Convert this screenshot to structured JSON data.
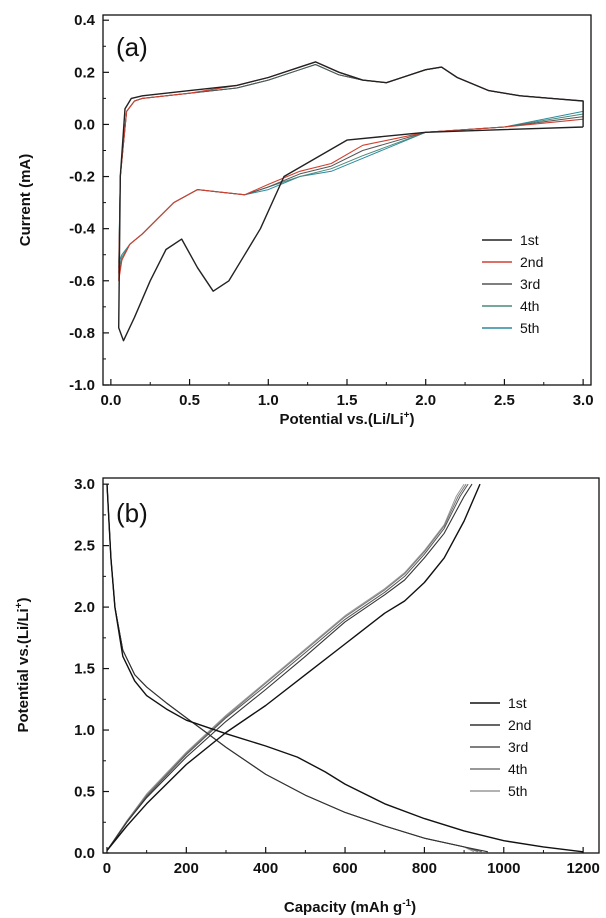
{
  "chart_data": [
    {
      "type": "line",
      "panel": "(a)",
      "xlabel": "Potential vs.(Li/Li",
      "xlabel_sup": "+",
      "xlabel_tail": ")",
      "ylabel": "Current (mA)",
      "xlim": [
        -0.05,
        3.05
      ],
      "ylim": [
        -1.0,
        0.42
      ],
      "xticks": [
        0.0,
        0.5,
        1.0,
        1.5,
        2.0,
        2.5,
        3.0
      ],
      "xtick_labels": [
        "0.0",
        "0.5",
        "1.0",
        "1.5",
        "2.0",
        "2.5",
        "3.0"
      ],
      "yticks": [
        -1.0,
        -0.8,
        -0.6,
        -0.4,
        -0.2,
        0.0,
        0.2,
        0.4
      ],
      "ytick_labels": [
        "-1.0",
        "-0.8",
        "-0.6",
        "-0.4",
        "-0.2",
        "0.0",
        "0.2",
        "0.4"
      ],
      "legend_position": "right",
      "series": [
        {
          "name": "1st",
          "color": "#222222",
          "width": 1.4,
          "x": [
            3.0,
            2.5,
            2.0,
            1.5,
            1.1,
            0.95,
            0.85,
            0.75,
            0.65,
            0.55,
            0.45,
            0.35,
            0.25,
            0.15,
            0.08,
            0.05,
            0.06,
            0.09,
            0.13,
            0.2,
            0.5,
            0.8,
            1.0,
            1.2,
            1.3,
            1.45,
            1.6,
            1.75,
            1.85,
            2.0,
            2.1,
            2.2,
            2.4,
            2.6,
            2.8,
            3.0,
            3.0
          ],
          "y": [
            -0.01,
            -0.02,
            -0.03,
            -0.06,
            -0.2,
            -0.4,
            -0.5,
            -0.6,
            -0.64,
            -0.55,
            -0.44,
            -0.48,
            -0.6,
            -0.74,
            -0.83,
            -0.78,
            -0.2,
            0.06,
            0.1,
            0.11,
            0.13,
            0.15,
            0.18,
            0.22,
            0.24,
            0.2,
            0.17,
            0.16,
            0.18,
            0.21,
            0.22,
            0.18,
            0.13,
            0.11,
            0.1,
            0.09,
            -0.01
          ]
        },
        {
          "name": "2nd",
          "color": "#d04030",
          "width": 1.1,
          "x": [
            3.0,
            2.5,
            2.0,
            1.6,
            1.4,
            1.2,
            1.0,
            0.85,
            0.7,
            0.55,
            0.4,
            0.3,
            0.2,
            0.12,
            0.07,
            0.05,
            0.06,
            0.1,
            0.15,
            0.2,
            0.5,
            0.8,
            1.0,
            1.2,
            1.3,
            1.45,
            1.6,
            1.75,
            1.85,
            2.0,
            2.1,
            2.2,
            2.4,
            2.6,
            2.8,
            3.0,
            3.0
          ],
          "y": [
            0.02,
            -0.01,
            -0.03,
            -0.08,
            -0.15,
            -0.18,
            -0.23,
            -0.27,
            -0.26,
            -0.25,
            -0.3,
            -0.36,
            -0.42,
            -0.46,
            -0.52,
            -0.6,
            -0.2,
            0.05,
            0.09,
            0.1,
            0.12,
            0.15,
            0.18,
            0.22,
            0.24,
            0.2,
            0.17,
            0.16,
            0.18,
            0.21,
            0.22,
            0.18,
            0.13,
            0.11,
            0.1,
            0.09,
            0.02
          ]
        },
        {
          "name": "3rd",
          "color": "#555555",
          "width": 1.0,
          "x": [
            3.0,
            2.5,
            2.0,
            1.6,
            1.4,
            1.2,
            1.0,
            0.85,
            0.7,
            0.55,
            0.4,
            0.3,
            0.2,
            0.12,
            0.07,
            0.05,
            0.06,
            0.1,
            0.15,
            0.2,
            0.5,
            0.8,
            1.0,
            1.2,
            1.3,
            1.45,
            1.6,
            1.75,
            1.85,
            2.0,
            2.1,
            2.2,
            2.4,
            2.6,
            2.8,
            3.0,
            3.0
          ],
          "y": [
            0.03,
            -0.01,
            -0.03,
            -0.1,
            -0.16,
            -0.19,
            -0.24,
            -0.27,
            -0.26,
            -0.25,
            -0.3,
            -0.36,
            -0.42,
            -0.46,
            -0.52,
            -0.57,
            -0.2,
            0.05,
            0.09,
            0.1,
            0.12,
            0.14,
            0.17,
            0.21,
            0.23,
            0.19,
            0.17,
            0.16,
            0.18,
            0.21,
            0.22,
            0.18,
            0.13,
            0.11,
            0.1,
            0.09,
            0.03
          ]
        },
        {
          "name": "4th",
          "color": "#4a8a78",
          "width": 1.0,
          "x": [
            3.0,
            2.5,
            2.0,
            1.6,
            1.4,
            1.2,
            1.0,
            0.85,
            0.7,
            0.55,
            0.4,
            0.3,
            0.2,
            0.12,
            0.07,
            0.05,
            0.06,
            0.1,
            0.15,
            0.2,
            0.5,
            0.8,
            1.0,
            1.2,
            1.3,
            1.45,
            1.6,
            1.75,
            1.85,
            2.0,
            2.1,
            2.2,
            2.4,
            2.6,
            2.8,
            3.0,
            3.0
          ],
          "y": [
            0.04,
            -0.01,
            -0.03,
            -0.12,
            -0.17,
            -0.2,
            -0.24,
            -0.27,
            -0.26,
            -0.25,
            -0.3,
            -0.36,
            -0.42,
            -0.46,
            -0.51,
            -0.55,
            -0.2,
            0.05,
            0.09,
            0.1,
            0.12,
            0.14,
            0.17,
            0.21,
            0.23,
            0.19,
            0.17,
            0.16,
            0.18,
            0.21,
            0.22,
            0.18,
            0.13,
            0.11,
            0.1,
            0.09,
            0.04
          ]
        },
        {
          "name": "5th",
          "color": "#2a8aa0",
          "width": 1.0,
          "x": [
            3.0,
            2.5,
            2.0,
            1.6,
            1.4,
            1.2,
            1.0,
            0.85,
            0.7,
            0.55,
            0.4,
            0.3,
            0.2,
            0.12,
            0.07,
            0.05,
            0.06,
            0.1,
            0.15,
            0.2,
            0.5,
            0.8,
            1.0,
            1.2,
            1.3,
            1.45,
            1.6,
            1.75,
            1.85,
            2.0,
            2.1,
            2.2,
            2.4,
            2.6,
            2.8,
            3.0,
            3.0
          ],
          "y": [
            0.05,
            -0.01,
            -0.03,
            -0.13,
            -0.18,
            -0.2,
            -0.25,
            -0.27,
            -0.26,
            -0.25,
            -0.3,
            -0.36,
            -0.42,
            -0.46,
            -0.5,
            -0.53,
            -0.2,
            0.05,
            0.09,
            0.1,
            0.12,
            0.14,
            0.17,
            0.21,
            0.23,
            0.19,
            0.17,
            0.16,
            0.18,
            0.21,
            0.22,
            0.18,
            0.13,
            0.11,
            0.1,
            0.09,
            0.05
          ]
        }
      ]
    },
    {
      "type": "line",
      "panel": "(b)",
      "xlabel": "Capacity (mAh g",
      "xlabel_sup": "-1",
      "xlabel_tail": ")",
      "ylabel": "Potential vs.(Li/Li",
      "ylabel_sup": "+",
      "ylabel_tail": ")",
      "xlim": [
        -10,
        1240
      ],
      "ylim": [
        0.0,
        3.05
      ],
      "xticks": [
        0,
        200,
        400,
        600,
        800,
        1000,
        1200
      ],
      "xtick_labels": [
        "0",
        "200",
        "400",
        "600",
        "800",
        "1000",
        "1200"
      ],
      "yticks": [
        0.0,
        0.5,
        1.0,
        1.5,
        2.0,
        2.5,
        3.0
      ],
      "ytick_labels": [
        "0.0",
        "0.5",
        "1.0",
        "1.5",
        "2.0",
        "2.5",
        "3.0"
      ],
      "legend_position": "right",
      "series": [
        {
          "name": "1st",
          "color": "#111111",
          "width": 1.4,
          "discharge_x": [
            0,
            10,
            20,
            40,
            70,
            100,
            150,
            200,
            300,
            400,
            480,
            550,
            600,
            700,
            800,
            900,
            1000,
            1100,
            1200
          ],
          "discharge_y": [
            3.0,
            2.4,
            2.0,
            1.6,
            1.4,
            1.28,
            1.17,
            1.08,
            0.97,
            0.87,
            0.78,
            0.66,
            0.56,
            0.4,
            0.28,
            0.18,
            0.1,
            0.05,
            0.01
          ],
          "charge_x": [
            0,
            50,
            100,
            200,
            300,
            400,
            500,
            600,
            700,
            750,
            800,
            850,
            900,
            940
          ],
          "charge_y": [
            0.02,
            0.22,
            0.4,
            0.72,
            0.98,
            1.2,
            1.45,
            1.7,
            1.95,
            2.05,
            2.2,
            2.4,
            2.7,
            3.0
          ]
        },
        {
          "name": "2nd",
          "color": "#333333",
          "width": 1.1,
          "discharge_x": [
            0,
            10,
            20,
            40,
            70,
            100,
            150,
            200,
            250,
            300,
            400,
            500,
            600,
            700,
            800,
            900,
            960
          ],
          "discharge_y": [
            3.0,
            2.4,
            2.0,
            1.65,
            1.45,
            1.35,
            1.22,
            1.1,
            0.98,
            0.86,
            0.64,
            0.47,
            0.33,
            0.22,
            0.12,
            0.05,
            0.01
          ],
          "charge_x": [
            0,
            50,
            100,
            200,
            300,
            400,
            500,
            600,
            700,
            750,
            800,
            850,
            900,
            920
          ],
          "charge_y": [
            0.02,
            0.25,
            0.45,
            0.78,
            1.07,
            1.33,
            1.6,
            1.88,
            2.1,
            2.22,
            2.4,
            2.6,
            2.9,
            3.0
          ]
        },
        {
          "name": "3rd",
          "color": "#555555",
          "width": 1.0,
          "discharge_x": [
            0,
            10,
            20,
            40,
            70,
            100,
            150,
            200,
            250,
            300,
            400,
            500,
            600,
            700,
            800,
            900,
            945
          ],
          "discharge_y": [
            3.0,
            2.4,
            2.0,
            1.65,
            1.45,
            1.35,
            1.22,
            1.1,
            0.98,
            0.86,
            0.64,
            0.47,
            0.33,
            0.22,
            0.12,
            0.05,
            0.01
          ],
          "charge_x": [
            0,
            50,
            100,
            200,
            300,
            400,
            500,
            600,
            700,
            750,
            800,
            850,
            890,
            910
          ],
          "charge_y": [
            0.02,
            0.25,
            0.46,
            0.8,
            1.1,
            1.36,
            1.63,
            1.9,
            2.12,
            2.25,
            2.43,
            2.64,
            2.9,
            3.0
          ]
        },
        {
          "name": "4th",
          "color": "#777777",
          "width": 1.0,
          "discharge_x": [
            0,
            10,
            20,
            40,
            70,
            100,
            150,
            200,
            250,
            300,
            400,
            500,
            600,
            700,
            800,
            900,
            935
          ],
          "discharge_y": [
            3.0,
            2.4,
            2.0,
            1.65,
            1.45,
            1.35,
            1.22,
            1.1,
            0.98,
            0.86,
            0.64,
            0.47,
            0.33,
            0.22,
            0.12,
            0.05,
            0.01
          ],
          "charge_x": [
            0,
            50,
            100,
            200,
            300,
            400,
            500,
            600,
            700,
            750,
            800,
            850,
            885,
            905
          ],
          "charge_y": [
            0.02,
            0.26,
            0.47,
            0.81,
            1.11,
            1.38,
            1.65,
            1.92,
            2.14,
            2.27,
            2.45,
            2.66,
            2.9,
            3.0
          ]
        },
        {
          "name": "5th",
          "color": "#999999",
          "width": 1.0,
          "discharge_x": [
            0,
            10,
            20,
            40,
            70,
            100,
            150,
            200,
            250,
            300,
            400,
            500,
            600,
            700,
            800,
            900,
            925
          ],
          "discharge_y": [
            3.0,
            2.4,
            2.0,
            1.65,
            1.45,
            1.35,
            1.22,
            1.1,
            0.98,
            0.86,
            0.64,
            0.47,
            0.33,
            0.22,
            0.12,
            0.05,
            0.01
          ],
          "charge_x": [
            0,
            50,
            100,
            200,
            300,
            400,
            500,
            600,
            700,
            750,
            800,
            850,
            880,
            900
          ],
          "charge_y": [
            0.02,
            0.26,
            0.48,
            0.82,
            1.12,
            1.39,
            1.66,
            1.93,
            2.15,
            2.28,
            2.46,
            2.67,
            2.9,
            3.0
          ]
        }
      ]
    }
  ]
}
